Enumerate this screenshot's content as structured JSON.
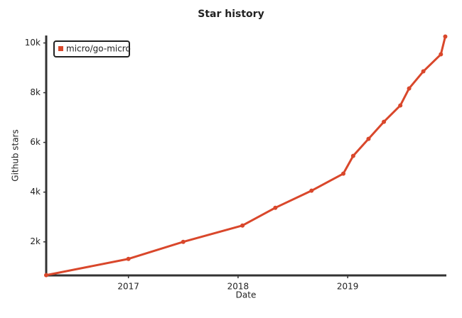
{
  "chart_data": {
    "type": "line",
    "title": "Star history",
    "x_label": "Date",
    "y_label": "Github stars",
    "legend": "top-left",
    "grid": false,
    "xlim": [
      2016.25,
      2019.9
    ],
    "xticks": [
      2017,
      2018,
      2019
    ],
    "ylim": [
      650,
      10300
    ],
    "yticks": [
      {
        "value": 2000,
        "label": "2k"
      },
      {
        "value": 4000,
        "label": "4k"
      },
      {
        "value": 6000,
        "label": "6k"
      },
      {
        "value": 8000,
        "label": "8k"
      },
      {
        "value": 10000,
        "label": "10k"
      }
    ],
    "series": [
      {
        "name": "micro/go-micro",
        "color": "#d9472b",
        "x": [
          2016.25,
          2017.0,
          2017.5,
          2018.04,
          2018.34,
          2018.67,
          2018.96,
          2019.05,
          2019.19,
          2019.33,
          2019.48,
          2019.56,
          2019.69,
          2019.85,
          2019.89
        ],
        "values": [
          660,
          1314,
          2000,
          2657,
          3371,
          4057,
          4743,
          5457,
          6143,
          6829,
          7486,
          8171,
          8857,
          9543,
          10257
        ]
      }
    ]
  }
}
